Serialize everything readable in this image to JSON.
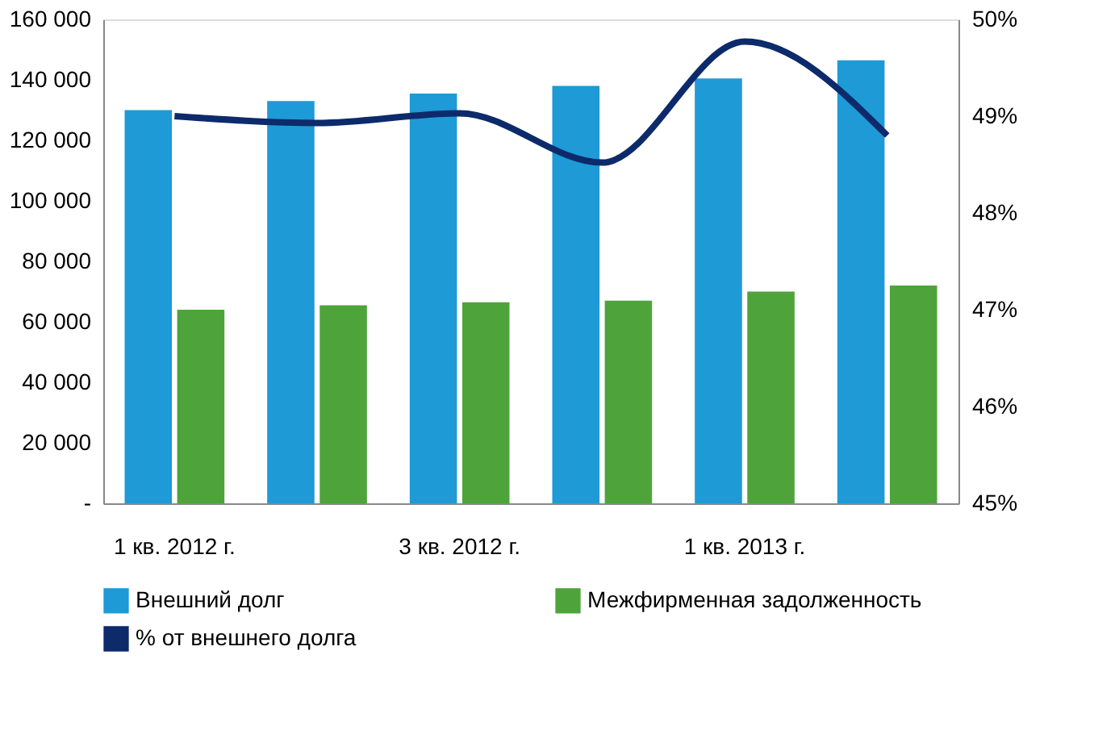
{
  "chart_data": {
    "type": "bar",
    "categories": [
      "1 кв. 2012 г.",
      null,
      "3 кв. 2012 г.",
      null,
      "1 кв. 2013 г.",
      null
    ],
    "series": [
      {
        "name": "Внешний долг",
        "color": "#1e9ad6",
        "values": [
          130000,
          133000,
          135500,
          138000,
          140500,
          146500
        ]
      },
      {
        "name": "Межфирменная задолженность",
        "color": "#4ea43a",
        "values": [
          64000,
          65500,
          66500,
          67000,
          70000,
          72000
        ]
      },
      {
        "name": "% от внешнего долга",
        "color": "#0d2a6b",
        "type": "line",
        "axis": "y2",
        "values": [
          49.0,
          48.93,
          49.03,
          48.52,
          49.77,
          48.8
        ]
      }
    ],
    "ylim": [
      0,
      160000
    ],
    "yticks": [
      {
        "value": 0,
        "label": "-"
      },
      {
        "value": 20000,
        "label": "20 000"
      },
      {
        "value": 40000,
        "label": "40 000"
      },
      {
        "value": 60000,
        "label": "60 000"
      },
      {
        "value": 80000,
        "label": "80 000"
      },
      {
        "value": 100000,
        "label": "100 000"
      },
      {
        "value": 120000,
        "label": "120 000"
      },
      {
        "value": 140000,
        "label": "140 000"
      },
      {
        "value": 160000,
        "label": "160 000"
      }
    ],
    "y2lim": [
      45,
      50
    ],
    "y2ticks": [
      {
        "value": 45,
        "label": "45%"
      },
      {
        "value": 46,
        "label": "46%"
      },
      {
        "value": 47,
        "label": "47%"
      },
      {
        "value": 48,
        "label": "48%"
      },
      {
        "value": 49,
        "label": "49%"
      },
      {
        "value": 50,
        "label": "50%"
      }
    ],
    "grid": false,
    "legend": "bottom",
    "line_style": "solid",
    "marker": "none"
  }
}
